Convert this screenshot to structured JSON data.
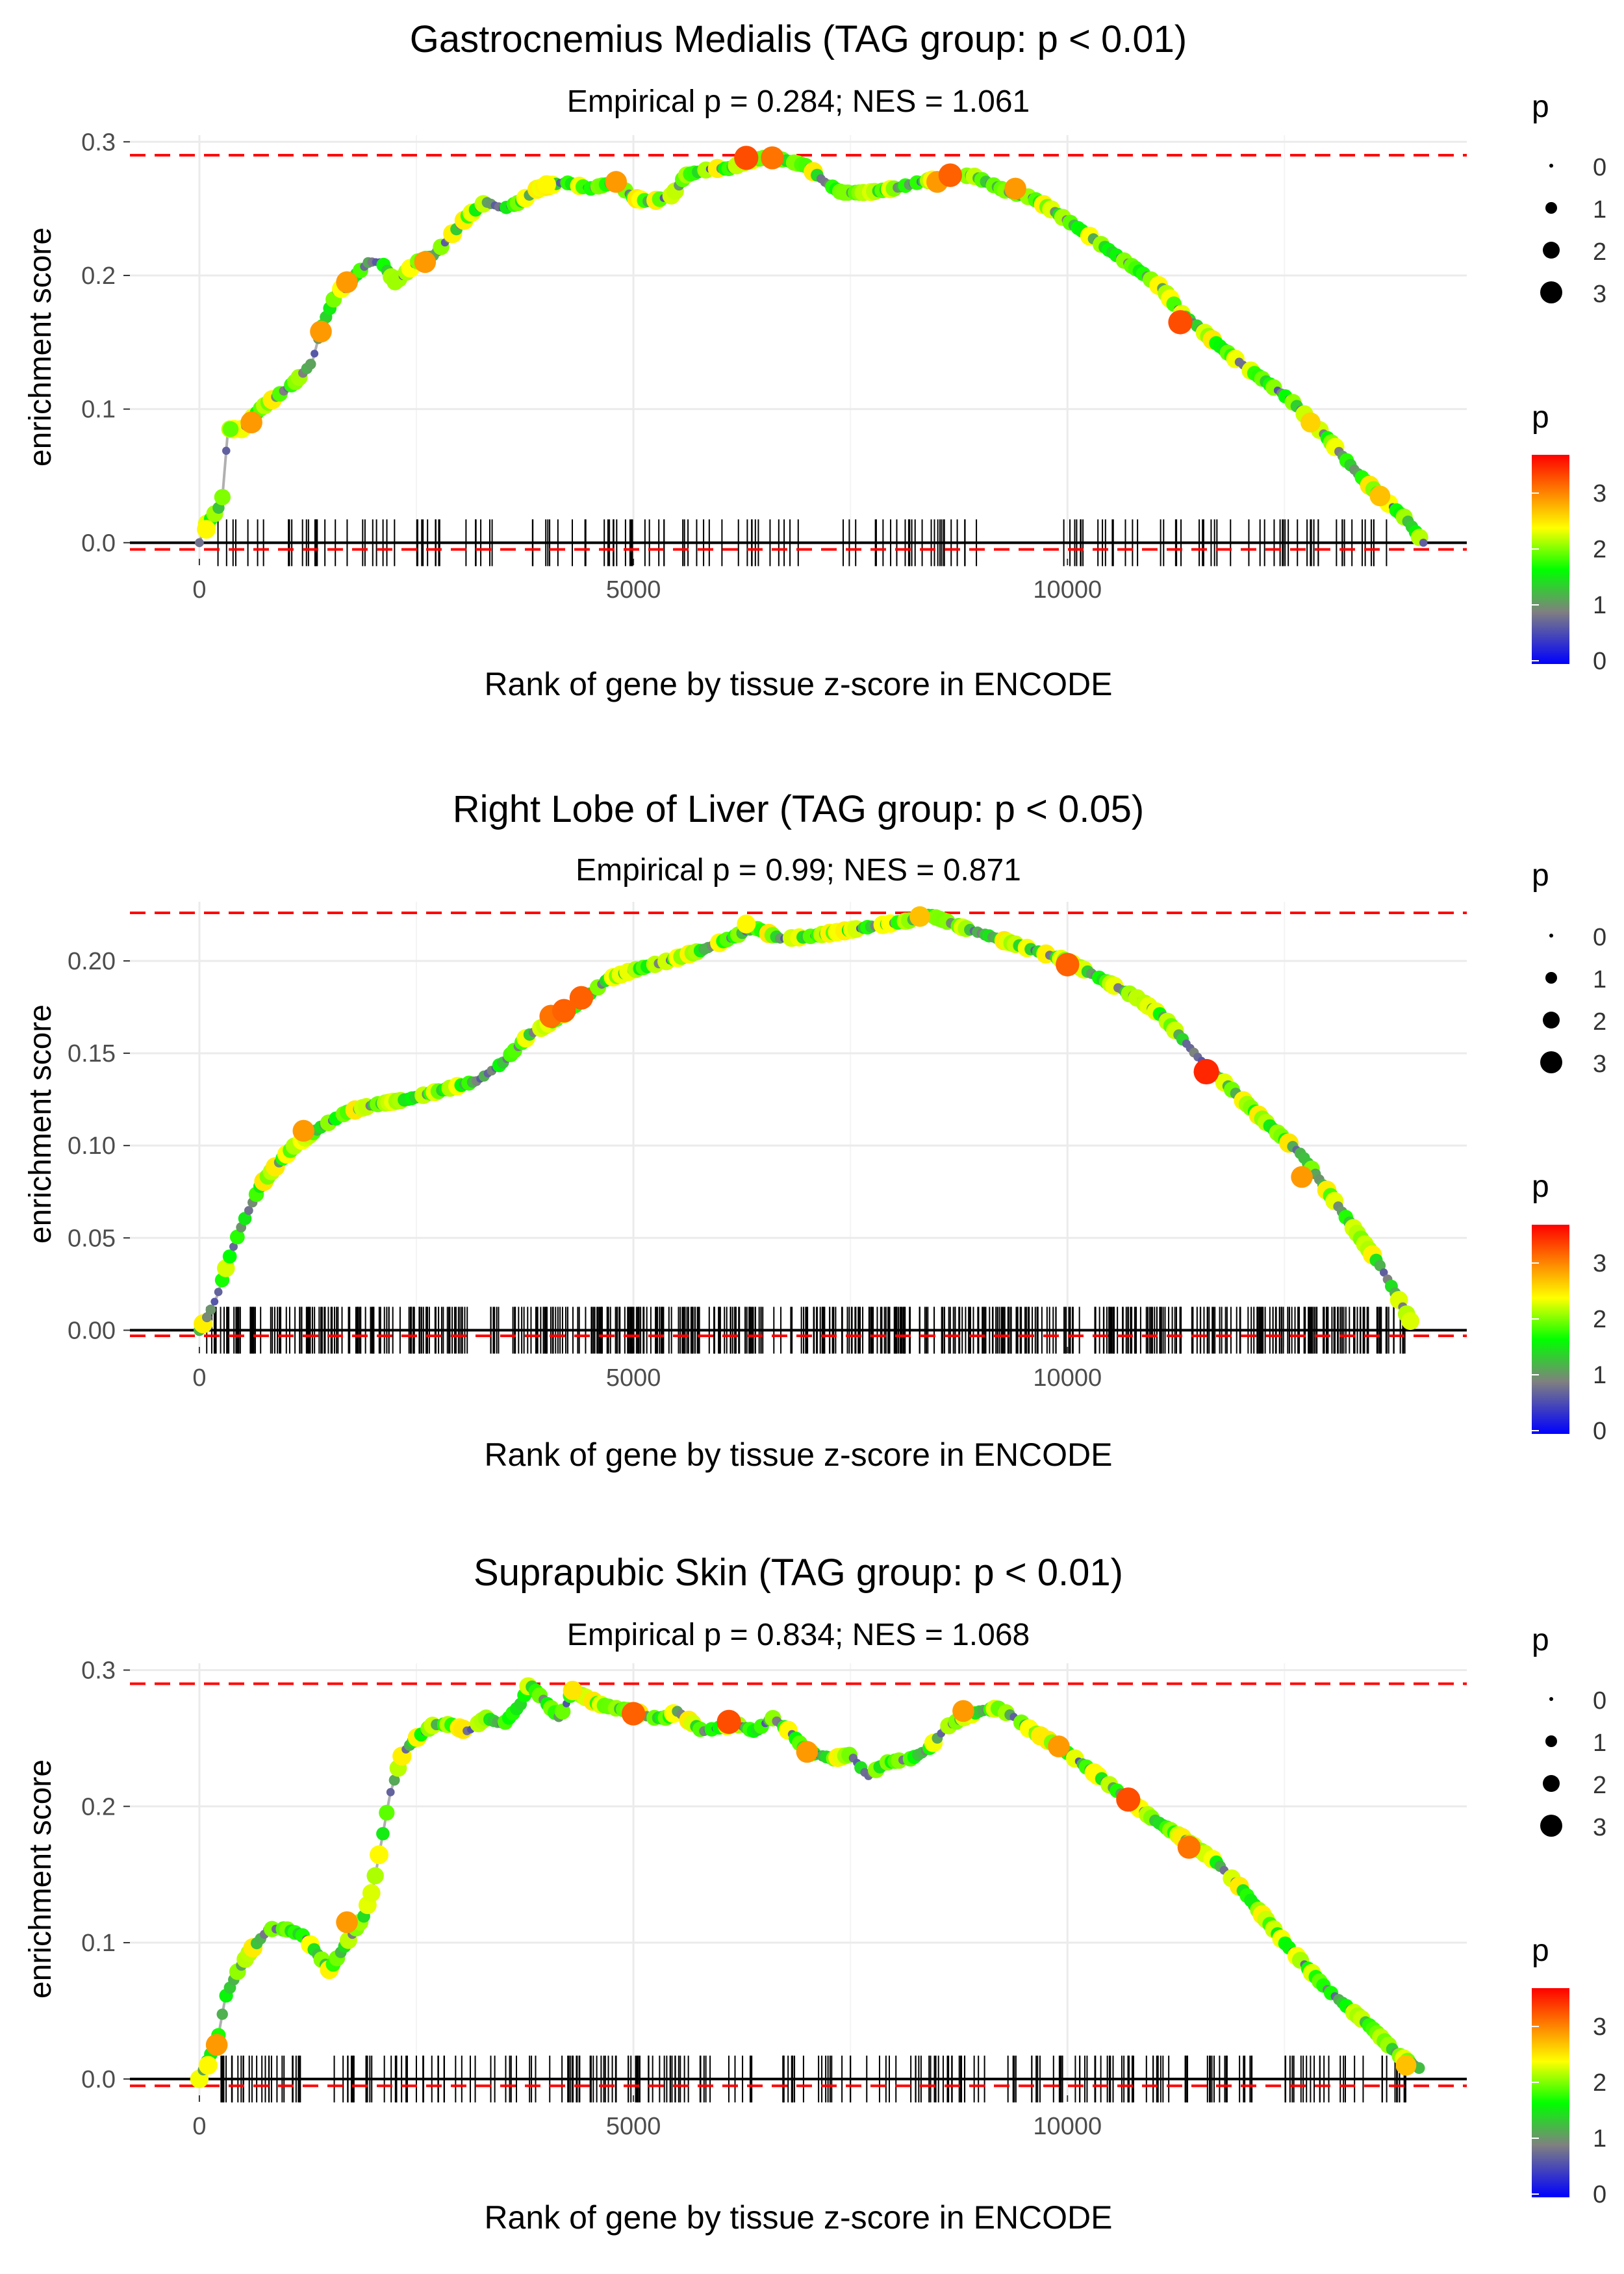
{
  "axis_common": {
    "xlabel": "Rank of gene by tissue z-score in ENCODE",
    "ylabel": "enrichment score",
    "x_ticks": [
      0,
      5000,
      10000
    ],
    "x_tick_labels": [
      "0",
      "5000",
      "10000"
    ],
    "xlim": [
      -800,
      14600
    ]
  },
  "legend": {
    "size_title": "p",
    "size_values": [
      "0",
      "1",
      "2",
      "3"
    ],
    "color_title": "p",
    "color_ticks": [
      "0",
      "1",
      "2",
      "3"
    ],
    "color_stops": [
      "#0000ff",
      "#808080",
      "#00ff00",
      "#ffff00",
      "#ff0000"
    ]
  },
  "colors": {
    "threshold_line": "#ff0000",
    "curve_line": "#b0b0b0",
    "grid": "#ebebeb",
    "rug": "#000000",
    "baseline": "#000000"
  },
  "chart_data": [
    {
      "type": "line",
      "title": "Gastrocnemius Medialis (TAG group: p < 0.01)",
      "subtitle": "Empirical p = 0.284; NES = 1.061",
      "ylim": [
        -0.012,
        0.305
      ],
      "y_ticks": [
        0.0,
        0.1,
        0.2,
        0.3
      ],
      "y_tick_labels": [
        "0.0",
        "0.1",
        "0.2",
        "0.3"
      ],
      "thresholds": [
        0.29,
        -0.005
      ],
      "curve": [
        [
          0,
          0.0
        ],
        [
          60,
          0.012
        ],
        [
          160,
          0.02
        ],
        [
          260,
          0.03
        ],
        [
          330,
          0.085
        ],
        [
          500,
          0.085
        ],
        [
          700,
          0.1
        ],
        [
          900,
          0.11
        ],
        [
          1100,
          0.12
        ],
        [
          1300,
          0.135
        ],
        [
          1400,
          0.16
        ],
        [
          1600,
          0.19
        ],
        [
          1700,
          0.19
        ],
        [
          1800,
          0.2
        ],
        [
          1950,
          0.21
        ],
        [
          2100,
          0.21
        ],
        [
          2250,
          0.195
        ],
        [
          2350,
          0.2
        ],
        [
          2500,
          0.21
        ],
        [
          2700,
          0.215
        ],
        [
          2900,
          0.23
        ],
        [
          3100,
          0.245
        ],
        [
          3300,
          0.255
        ],
        [
          3500,
          0.25
        ],
        [
          3700,
          0.255
        ],
        [
          3900,
          0.265
        ],
        [
          4200,
          0.27
        ],
        [
          4500,
          0.265
        ],
        [
          4800,
          0.27
        ],
        [
          5000,
          0.258
        ],
        [
          5200,
          0.255
        ],
        [
          5450,
          0.26
        ],
        [
          5600,
          0.275
        ],
        [
          5900,
          0.28
        ],
        [
          6100,
          0.28
        ],
        [
          6300,
          0.285
        ],
        [
          6500,
          0.288
        ],
        [
          6700,
          0.287
        ],
        [
          7000,
          0.282
        ],
        [
          7200,
          0.27
        ],
        [
          7400,
          0.262
        ],
        [
          7700,
          0.262
        ],
        [
          8000,
          0.265
        ],
        [
          8300,
          0.27
        ],
        [
          8600,
          0.273
        ],
        [
          8900,
          0.275
        ],
        [
          9000,
          0.272
        ],
        [
          9300,
          0.263
        ],
        [
          9600,
          0.258
        ],
        [
          9800,
          0.25
        ],
        [
          10200,
          0.232
        ],
        [
          10500,
          0.218
        ],
        [
          10900,
          0.2
        ],
        [
          11100,
          0.19
        ],
        [
          11300,
          0.172
        ],
        [
          11500,
          0.162
        ],
        [
          11700,
          0.15
        ],
        [
          12000,
          0.134
        ],
        [
          12300,
          0.12
        ],
        [
          12600,
          0.105
        ],
        [
          13000,
          0.078
        ],
        [
          13300,
          0.055
        ],
        [
          13600,
          0.035
        ],
        [
          13900,
          0.018
        ],
        [
          14100,
          0.0
        ]
      ],
      "points": [
        [
          80,
          0.01,
          2.5
        ],
        [
          360,
          0.085,
          2.0
        ],
        [
          600,
          0.09,
          3.0
        ],
        [
          1400,
          0.158,
          3.0
        ],
        [
          1700,
          0.195,
          3.0
        ],
        [
          2600,
          0.21,
          3.0
        ],
        [
          4000,
          0.268,
          2.5
        ],
        [
          4800,
          0.27,
          3.0
        ],
        [
          6300,
          0.288,
          3.4
        ],
        [
          6600,
          0.288,
          3.2
        ],
        [
          8500,
          0.27,
          3.0
        ],
        [
          8650,
          0.275,
          3.3
        ],
        [
          9400,
          0.265,
          3.0
        ],
        [
          11300,
          0.165,
          3.4
        ],
        [
          12800,
          0.09,
          2.7
        ],
        [
          13600,
          0.035,
          2.8
        ]
      ],
      "rug_min": 150,
      "rug_max": 13700,
      "rug_count": 190,
      "rug_gaps": [
        [
          3500,
          3800
        ],
        [
          6900,
          7400
        ],
        [
          9100,
          9900
        ]
      ]
    },
    {
      "type": "line",
      "title": "Right Lobe of Liver (TAG group: p < 0.05)",
      "subtitle": "Empirical p = 0.99; NES = 0.871",
      "ylim": [
        -0.009,
        0.232
      ],
      "y_ticks": [
        0.0,
        0.05,
        0.1,
        0.15,
        0.2
      ],
      "y_tick_labels": [
        "0.00",
        "0.05",
        "0.10",
        "0.15",
        "0.20"
      ],
      "thresholds": [
        0.226,
        -0.003
      ],
      "curve": [
        [
          0,
          0.0
        ],
        [
          100,
          0.008
        ],
        [
          200,
          0.018
        ],
        [
          350,
          0.04
        ],
        [
          500,
          0.058
        ],
        [
          700,
          0.078
        ],
        [
          900,
          0.09
        ],
        [
          1100,
          0.1
        ],
        [
          1400,
          0.11
        ],
        [
          1700,
          0.118
        ],
        [
          2000,
          0.122
        ],
        [
          2400,
          0.125
        ],
        [
          2800,
          0.13
        ],
        [
          3200,
          0.135
        ],
        [
          3500,
          0.145
        ],
        [
          3800,
          0.16
        ],
        [
          4100,
          0.168
        ],
        [
          4400,
          0.178
        ],
        [
          4700,
          0.19
        ],
        [
          5000,
          0.195
        ],
        [
          5400,
          0.2
        ],
        [
          5800,
          0.206
        ],
        [
          6200,
          0.214
        ],
        [
          6400,
          0.218
        ],
        [
          6700,
          0.212
        ],
        [
          7000,
          0.213
        ],
        [
          7400,
          0.216
        ],
        [
          7800,
          0.219
        ],
        [
          8200,
          0.222
        ],
        [
          8400,
          0.225
        ],
        [
          8800,
          0.218
        ],
        [
          9200,
          0.212
        ],
        [
          9600,
          0.206
        ],
        [
          10000,
          0.2
        ],
        [
          10400,
          0.19
        ],
        [
          10800,
          0.18
        ],
        [
          11100,
          0.17
        ],
        [
          11500,
          0.148
        ],
        [
          11900,
          0.13
        ],
        [
          12300,
          0.112
        ],
        [
          12700,
          0.095
        ],
        [
          13000,
          0.075
        ],
        [
          13300,
          0.055
        ],
        [
          13600,
          0.035
        ],
        [
          13800,
          0.018
        ],
        [
          13950,
          0.005
        ]
      ],
      "points": [
        [
          1200,
          0.108,
          3.0
        ],
        [
          4050,
          0.17,
          3.2
        ],
        [
          4200,
          0.173,
          3.3
        ],
        [
          4400,
          0.18,
          3.3
        ],
        [
          6300,
          0.22,
          2.5
        ],
        [
          8300,
          0.224,
          2.8
        ],
        [
          10000,
          0.198,
          3.3
        ],
        [
          11600,
          0.14,
          3.6
        ],
        [
          12700,
          0.083,
          3.0
        ]
      ],
      "rug_min": 80,
      "rug_max": 13900,
      "rug_count": 560,
      "rug_gaps": []
    },
    {
      "type": "line",
      "title": "Suprapubic Skin (TAG group: p < 0.01)",
      "subtitle": "Empirical p = 0.834; NES = 1.068",
      "ylim": [
        -0.012,
        0.305
      ],
      "y_ticks": [
        0.0,
        0.1,
        0.2,
        0.3
      ],
      "y_tick_labels": [
        "0.0",
        "0.1",
        "0.2",
        "0.3"
      ],
      "thresholds": [
        0.29,
        -0.005
      ],
      "curve": [
        [
          0,
          0.0
        ],
        [
          100,
          0.015
        ],
        [
          200,
          0.025
        ],
        [
          300,
          0.06
        ],
        [
          450,
          0.08
        ],
        [
          600,
          0.095
        ],
        [
          800,
          0.11
        ],
        [
          1000,
          0.11
        ],
        [
          1200,
          0.105
        ],
        [
          1500,
          0.08
        ],
        [
          1700,
          0.1
        ],
        [
          1900,
          0.12
        ],
        [
          2000,
          0.14
        ],
        [
          2200,
          0.21
        ],
        [
          2350,
          0.24
        ],
        [
          2500,
          0.25
        ],
        [
          2700,
          0.26
        ],
        [
          2900,
          0.26
        ],
        [
          3100,
          0.255
        ],
        [
          3300,
          0.265
        ],
        [
          3500,
          0.26
        ],
        [
          3700,
          0.275
        ],
        [
          3800,
          0.29
        ],
        [
          4150,
          0.265
        ],
        [
          4300,
          0.285
        ],
        [
          4600,
          0.275
        ],
        [
          4800,
          0.272
        ],
        [
          5000,
          0.27
        ],
        [
          5200,
          0.265
        ],
        [
          5400,
          0.265
        ],
        [
          5500,
          0.27
        ],
        [
          5800,
          0.255
        ],
        [
          6000,
          0.258
        ],
        [
          6200,
          0.26
        ],
        [
          6400,
          0.255
        ],
        [
          6600,
          0.265
        ],
        [
          6800,
          0.255
        ],
        [
          7000,
          0.24
        ],
        [
          7300,
          0.235
        ],
        [
          7500,
          0.238
        ],
        [
          7700,
          0.222
        ],
        [
          7900,
          0.232
        ],
        [
          8200,
          0.235
        ],
        [
          8400,
          0.242
        ],
        [
          8600,
          0.258
        ],
        [
          8800,
          0.265
        ],
        [
          9000,
          0.27
        ],
        [
          9200,
          0.272
        ],
        [
          9400,
          0.265
        ],
        [
          9600,
          0.255
        ],
        [
          9900,
          0.244
        ],
        [
          10300,
          0.225
        ],
        [
          10700,
          0.205
        ],
        [
          11000,
          0.19
        ],
        [
          11300,
          0.178
        ],
        [
          11700,
          0.16
        ],
        [
          12000,
          0.14
        ],
        [
          12500,
          0.1
        ],
        [
          13000,
          0.065
        ],
        [
          13500,
          0.038
        ],
        [
          13800,
          0.018
        ],
        [
          14050,
          0.008
        ]
      ],
      "points": [
        [
          100,
          0.01,
          2.5
        ],
        [
          200,
          0.025,
          3.0
        ],
        [
          1700,
          0.115,
          3.0
        ],
        [
          4300,
          0.285,
          2.6
        ],
        [
          5000,
          0.268,
          3.3
        ],
        [
          6100,
          0.262,
          3.4
        ],
        [
          7000,
          0.24,
          3.0
        ],
        [
          8800,
          0.27,
          3.0
        ],
        [
          9900,
          0.244,
          3.0
        ],
        [
          10700,
          0.205,
          3.4
        ],
        [
          11400,
          0.17,
          3.2
        ],
        [
          13900,
          0.01,
          2.8
        ]
      ],
      "rug_min": 80,
      "rug_max": 13900,
      "rug_count": 280,
      "rug_gaps": [
        [
          1200,
          1500
        ],
        [
          12200,
          12500
        ]
      ]
    }
  ]
}
